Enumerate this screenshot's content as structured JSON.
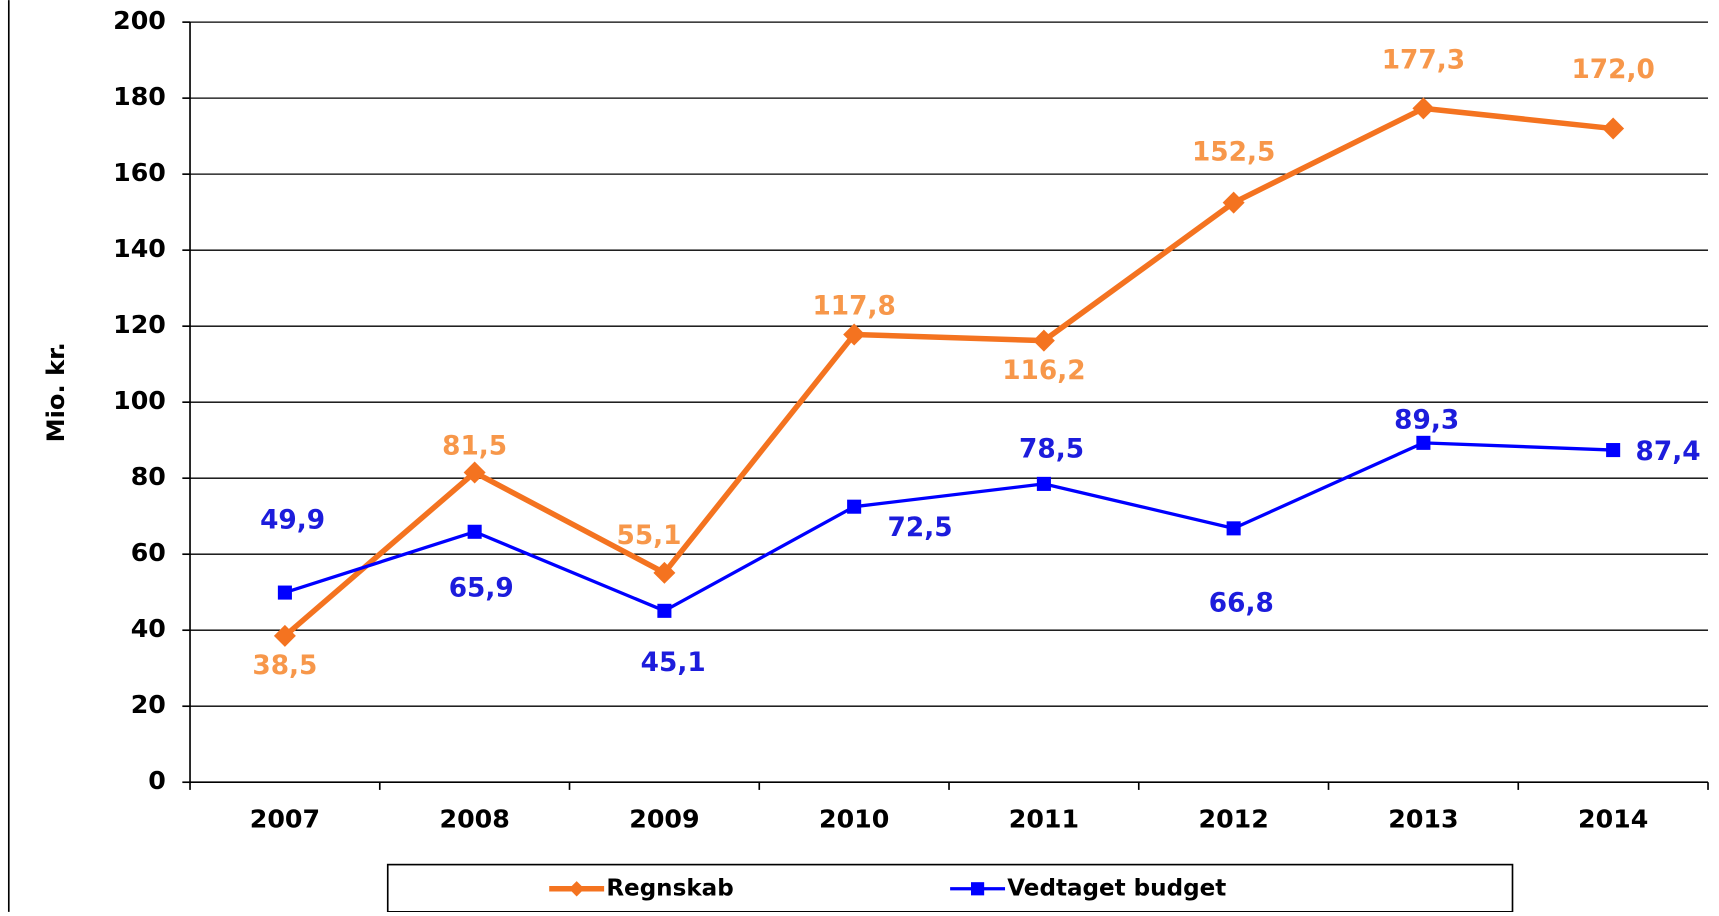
{
  "chart_data": {
    "type": "line",
    "y_label": "Mio. kr.",
    "categories": [
      "2007",
      "2008",
      "2009",
      "2010",
      "2011",
      "2012",
      "2013",
      "2014"
    ],
    "series": [
      {
        "name": "Regnskab",
        "color": "#f47320",
        "marker": "diamond",
        "values": [
          38.5,
          81.5,
          55.1,
          117.8,
          116.2,
          152.5,
          177.3,
          172.0
        ],
        "value_labels": [
          "38,5",
          "81,5",
          "55,1",
          "117,8",
          "116,2",
          "152,5",
          "177,3",
          "172,0"
        ]
      },
      {
        "name": "Vedtaget budget",
        "color": "#0000ff",
        "marker": "square",
        "values": [
          49.9,
          65.9,
          45.1,
          72.5,
          78.5,
          66.8,
          89.3,
          87.4
        ],
        "value_labels": [
          "49,9",
          "65,9",
          "45,1",
          "72,5",
          "78,5",
          "66,8",
          "89,3",
          "87,4"
        ]
      }
    ],
    "ylim": [
      0,
      200
    ],
    "yticks": [
      0,
      20,
      40,
      60,
      80,
      100,
      120,
      140,
      160,
      180,
      200
    ],
    "grid": true,
    "legend": "bottom"
  }
}
